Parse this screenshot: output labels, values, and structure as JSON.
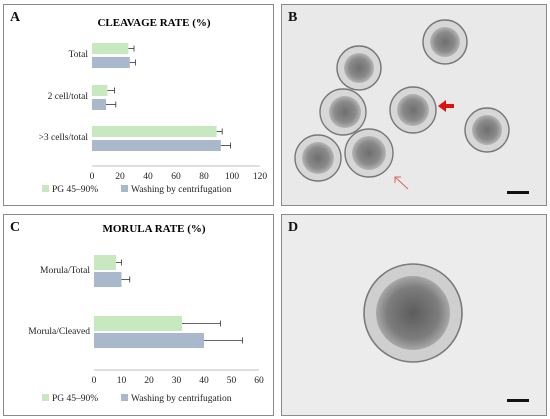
{
  "panels": {
    "a": {
      "letter": "A"
    },
    "b": {
      "letter": "B"
    },
    "c": {
      "letter": "C"
    },
    "d": {
      "letter": "D"
    }
  },
  "colors": {
    "pg": "#c8e8c0",
    "wash": "#aab8cc",
    "bar_stroke": "#9aa8bb",
    "axis": "#bfbfbf"
  },
  "chart_data": [
    {
      "type": "bar",
      "orientation": "horizontal",
      "title": "CLEAVAGE RATE (%)",
      "categories": [
        "Total",
        "2 cell/total",
        ">3 cells/total"
      ],
      "series": [
        {
          "name": "PG 45–90%",
          "values": [
            26,
            11,
            89
          ],
          "errors": [
            4,
            5,
            4
          ]
        },
        {
          "name": "Washing by centrifugation",
          "values": [
            27,
            10,
            92
          ],
          "errors": [
            4,
            7,
            7
          ]
        }
      ],
      "xlim": [
        0,
        120
      ],
      "xticks": [
        "0",
        "20",
        "40",
        "60",
        "80",
        "100",
        "120"
      ],
      "legend": "bottom"
    },
    {
      "type": "bar",
      "orientation": "horizontal",
      "title": "MORULA RATE (%)",
      "categories": [
        "Morula/Total",
        "Morula/Cleaved"
      ],
      "series": [
        {
          "name": "PG 45–90%",
          "values": [
            8,
            32
          ],
          "errors": [
            2,
            14
          ]
        },
        {
          "name": "Washing by centrifugation",
          "values": [
            10,
            40
          ],
          "errors": [
            3,
            14
          ]
        }
      ],
      "xlim": [
        0,
        60
      ],
      "xticks": [
        "0",
        "10",
        "20",
        "30",
        "40",
        "50",
        "60"
      ],
      "legend": "bottom"
    }
  ]
}
